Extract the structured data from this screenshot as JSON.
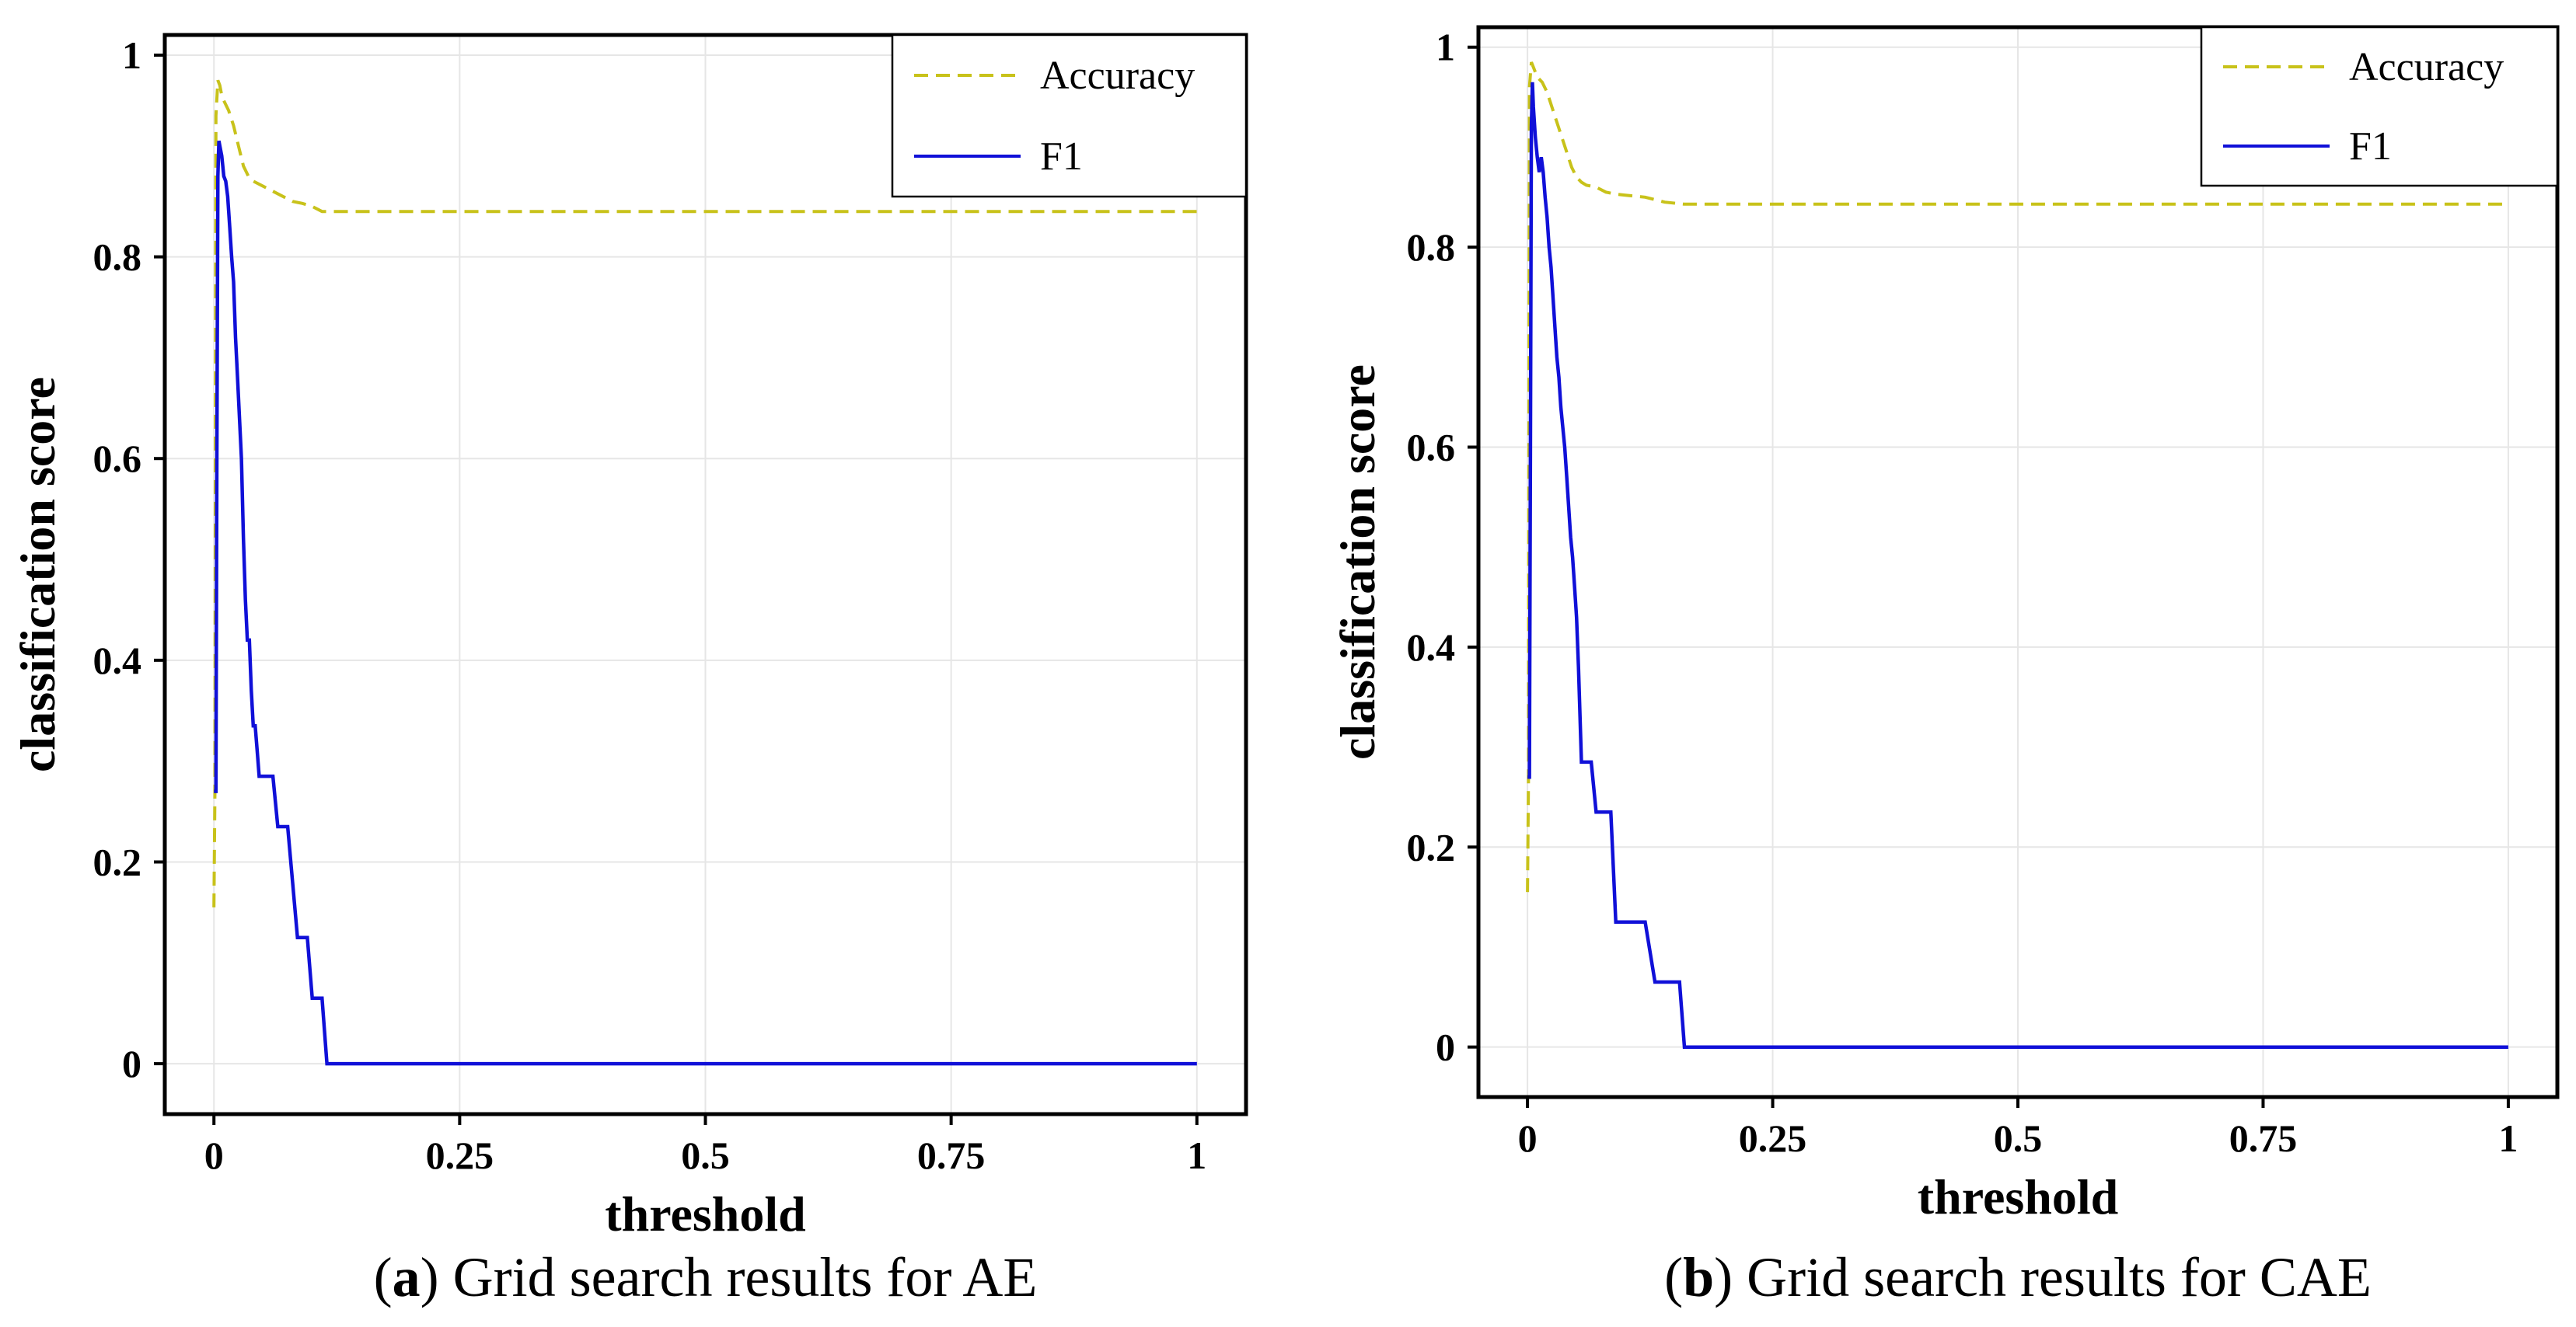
{
  "chart_data": [
    {
      "type": "line",
      "caption_letter": "a",
      "caption_text": "Grid search results for AE",
      "xlabel": "threshold",
      "ylabel": "classification score",
      "xlim": [
        -0.05,
        1.05
      ],
      "ylim": [
        -0.05,
        1.02
      ],
      "x_ticks": [
        0,
        0.25,
        0.5,
        0.75,
        1
      ],
      "x_tick_labels": [
        "0",
        "0.25",
        "0.5",
        "0.75",
        "1"
      ],
      "y_ticks": [
        0,
        0.2,
        0.4,
        0.6,
        0.8,
        1
      ],
      "y_tick_labels": [
        "0",
        "0.2",
        "0.4",
        "0.6",
        "0.8",
        "1"
      ],
      "grid": true,
      "legend_position": "top-right",
      "series": [
        {
          "name": "Accuracy",
          "color": "#c8c21a",
          "style": "dashed",
          "x": [
            0,
            0.001,
            0.002,
            0.004,
            0.006,
            0.008,
            0.01,
            0.015,
            0.02,
            0.025,
            0.03,
            0.035,
            0.04,
            0.05,
            0.06,
            0.07,
            0.08,
            0.09,
            0.1,
            0.11,
            0.12,
            1.0
          ],
          "y": [
            0.155,
            0.27,
            0.94,
            0.975,
            0.97,
            0.96,
            0.955,
            0.945,
            0.93,
            0.91,
            0.89,
            0.88,
            0.875,
            0.87,
            0.865,
            0.86,
            0.855,
            0.853,
            0.85,
            0.845,
            0.845,
            0.845
          ]
        },
        {
          "name": "F1",
          "color": "#1010d8",
          "style": "solid",
          "x": [
            0,
            0.002,
            0.003,
            0.004,
            0.005,
            0.006,
            0.008,
            0.01,
            0.012,
            0.014,
            0.016,
            0.018,
            0.02,
            0.022,
            0.024,
            0.026,
            0.028,
            0.03,
            0.032,
            0.034,
            0.036,
            0.038,
            0.04,
            0.042,
            0.044,
            0.046,
            0.048,
            0.05,
            0.055,
            0.06,
            0.065,
            0.07,
            0.075,
            0.08,
            0.085,
            0.09,
            0.095,
            0.1,
            0.105,
            0.11,
            0.115,
            0.12,
            1.0
          ],
          "y": [
            0.27,
            0.27,
            0.6,
            0.88,
            0.915,
            0.91,
            0.9,
            0.88,
            0.875,
            0.86,
            0.83,
            0.8,
            0.775,
            0.72,
            0.68,
            0.64,
            0.6,
            0.52,
            0.46,
            0.42,
            0.42,
            0.37,
            0.335,
            0.335,
            0.31,
            0.285,
            0.285,
            0.285,
            0.285,
            0.285,
            0.235,
            0.235,
            0.235,
            0.18,
            0.125,
            0.125,
            0.125,
            0.065,
            0.065,
            0.065,
            0.0,
            0.0,
            0.0
          ]
        }
      ]
    },
    {
      "type": "line",
      "caption_letter": "b",
      "caption_text": "Grid search results for CAE",
      "xlabel": "threshold",
      "ylabel": "classification score",
      "xlim": [
        -0.05,
        1.05
      ],
      "ylim": [
        -0.05,
        1.02
      ],
      "x_ticks": [
        0,
        0.25,
        0.5,
        0.75,
        1
      ],
      "x_tick_labels": [
        "0",
        "0.25",
        "0.5",
        "0.75",
        "1"
      ],
      "y_ticks": [
        0,
        0.2,
        0.4,
        0.6,
        0.8,
        1
      ],
      "y_tick_labels": [
        "0",
        "0.2",
        "0.4",
        "0.6",
        "0.8",
        "1"
      ],
      "grid": true,
      "legend_position": "top-right",
      "series": [
        {
          "name": "Accuracy",
          "color": "#c8c21a",
          "style": "dashed",
          "x": [
            0,
            0.001,
            0.002,
            0.004,
            0.006,
            0.01,
            0.015,
            0.02,
            0.025,
            0.03,
            0.035,
            0.04,
            0.045,
            0.05,
            0.055,
            0.06,
            0.07,
            0.08,
            0.09,
            0.1,
            0.12,
            0.14,
            0.16,
            1.0
          ],
          "y": [
            0.155,
            0.27,
            0.96,
            0.985,
            0.98,
            0.97,
            0.965,
            0.955,
            0.94,
            0.925,
            0.91,
            0.895,
            0.88,
            0.87,
            0.865,
            0.862,
            0.86,
            0.855,
            0.853,
            0.852,
            0.85,
            0.845,
            0.843,
            0.843
          ]
        },
        {
          "name": "F1",
          "color": "#1010d8",
          "style": "solid",
          "x": [
            0,
            0.002,
            0.003,
            0.004,
            0.005,
            0.006,
            0.008,
            0.01,
            0.012,
            0.014,
            0.016,
            0.018,
            0.02,
            0.022,
            0.024,
            0.026,
            0.028,
            0.03,
            0.032,
            0.034,
            0.036,
            0.038,
            0.04,
            0.042,
            0.044,
            0.046,
            0.048,
            0.05,
            0.052,
            0.055,
            0.06,
            0.065,
            0.07,
            0.08,
            0.085,
            0.09,
            0.1,
            0.11,
            0.12,
            0.13,
            0.14,
            0.15,
            0.155,
            0.16,
            1.0
          ],
          "y": [
            0.27,
            0.27,
            0.6,
            0.92,
            0.965,
            0.94,
            0.91,
            0.89,
            0.875,
            0.89,
            0.875,
            0.85,
            0.83,
            0.8,
            0.78,
            0.75,
            0.72,
            0.69,
            0.67,
            0.64,
            0.62,
            0.6,
            0.57,
            0.54,
            0.51,
            0.49,
            0.46,
            0.43,
            0.38,
            0.285,
            0.285,
            0.285,
            0.235,
            0.235,
            0.235,
            0.125,
            0.125,
            0.125,
            0.125,
            0.065,
            0.065,
            0.065,
            0.065,
            0.0,
            0.0
          ]
        }
      ]
    }
  ]
}
